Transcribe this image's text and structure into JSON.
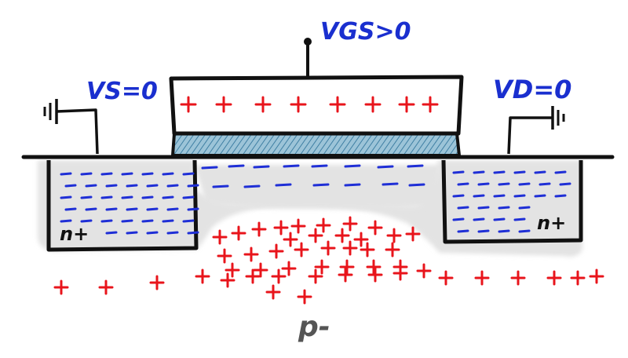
{
  "labels": {
    "gate_voltage": "VGS>0",
    "source_voltage": "VS=0",
    "drain_voltage": "VD=0",
    "source_region": "n+",
    "drain_region": "n+",
    "substrate": "p-"
  },
  "colors": {
    "outline": "#111111",
    "electron": "#1f2fd6",
    "hole": "#e8141b",
    "oxide": "#4d8fb0",
    "depletion": "#e2e2e2",
    "label_blue": "#1a2fcf",
    "label_gray": "#555555"
  },
  "icons": {
    "source_ground": "ground-symbol-icon",
    "drain_ground": "ground-symbol-icon"
  }
}
